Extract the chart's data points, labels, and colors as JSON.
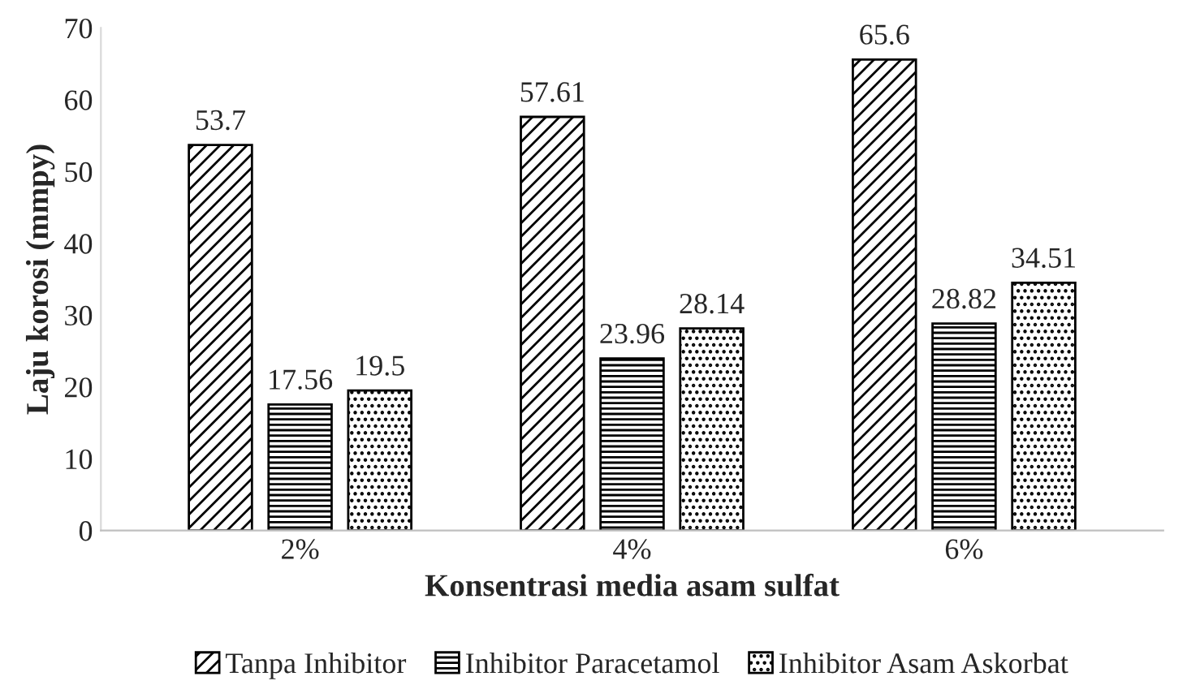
{
  "chart_data": {
    "type": "bar",
    "xlabel": "Konsentrasi media asam sulfat",
    "ylabel": "Laju korosi (mmpy)",
    "categories": [
      "2%",
      "4%",
      "6%"
    ],
    "series": [
      {
        "name": "Tanpa Inhibitor",
        "color": "#000000",
        "values": [
          53.7,
          57.61,
          65.6
        ]
      },
      {
        "name": "Inhibitor Paracetamol",
        "color": "#000000",
        "values": [
          17.56,
          23.96,
          28.82
        ]
      },
      {
        "name": "Inhibitor Asam Askorbat",
        "color": "#000000",
        "values": [
          19.5,
          28.14,
          34.51
        ]
      }
    ],
    "ylim": [
      0,
      70
    ],
    "yticks": [
      0,
      10,
      20,
      30,
      40,
      50,
      60,
      70
    ],
    "data_labels": true,
    "legend": "bottom",
    "grid": false
  }
}
